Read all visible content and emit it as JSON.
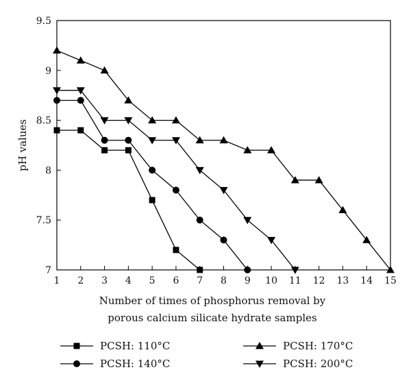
{
  "chart_data": {
    "type": "line",
    "title": "",
    "xlabel_lines": [
      "Number of times of phosphorus removal by",
      "porous calcium silicate hydrate samples"
    ],
    "ylabel": "pH values",
    "xlim": [
      1,
      15
    ],
    "ylim": [
      7,
      9.5
    ],
    "x_ticks": [
      "1",
      "2",
      "3",
      "4",
      "5",
      "6",
      "7",
      "8",
      "9",
      "10",
      "11",
      "12",
      "13",
      "14",
      "15"
    ],
    "y_ticks": [
      "7",
      "7.5",
      "8",
      "8.5",
      "9",
      "9.5"
    ],
    "grid": false,
    "legend_position": "bottom",
    "series": [
      {
        "name": "PCSH: 110°C",
        "marker": "square",
        "x": [
          1,
          2,
          3,
          4,
          5,
          6,
          7
        ],
        "y": [
          8.4,
          8.4,
          8.2,
          8.2,
          7.7,
          7.2,
          7.0
        ]
      },
      {
        "name": "PCSH: 140°C",
        "marker": "circle",
        "x": [
          1,
          2,
          3,
          4,
          5,
          6,
          7,
          8,
          9
        ],
        "y": [
          8.7,
          8.7,
          8.3,
          8.3,
          8.0,
          7.8,
          7.5,
          7.3,
          7.0
        ]
      },
      {
        "name": "PCSH: 170°C",
        "marker": "triangle-up",
        "x": [
          1,
          2,
          3,
          4,
          5,
          6,
          7,
          8,
          9,
          10,
          11,
          12,
          13,
          14,
          15
        ],
        "y": [
          9.2,
          9.1,
          9.0,
          8.7,
          8.5,
          8.5,
          8.3,
          8.3,
          8.2,
          8.2,
          7.9,
          7.9,
          7.6,
          7.3,
          7.0
        ]
      },
      {
        "name": "PCSH: 200°C",
        "marker": "triangle-down",
        "x": [
          1,
          2,
          3,
          4,
          5,
          6,
          7,
          8,
          9,
          10,
          11
        ],
        "y": [
          8.8,
          8.8,
          8.5,
          8.5,
          8.3,
          8.3,
          8.0,
          7.8,
          7.5,
          7.3,
          7.0
        ]
      }
    ]
  }
}
